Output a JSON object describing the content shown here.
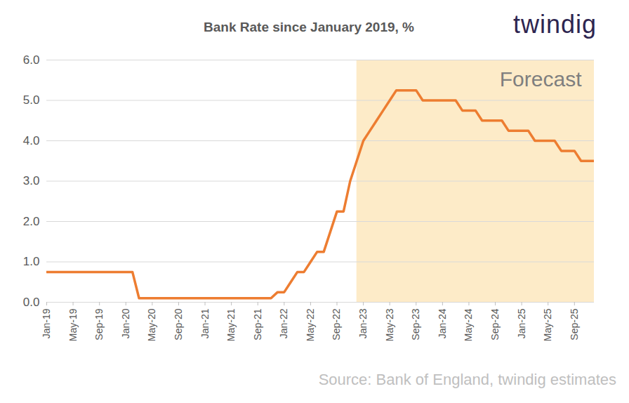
{
  "chart_data": {
    "type": "line",
    "title": "Bank Rate since January 2019, %",
    "brand": "twindig",
    "source": "Source: Bank of England, twindig estimates",
    "categories": [
      "Jan-19",
      null,
      null,
      null,
      "May-19",
      null,
      null,
      null,
      "Sep-19",
      null,
      null,
      null,
      "Jan-20",
      null,
      null,
      null,
      "May-20",
      null,
      null,
      null,
      "Sep-20",
      null,
      null,
      null,
      "Jan-21",
      null,
      null,
      null,
      "May-21",
      null,
      null,
      null,
      "Sep-21",
      null,
      null,
      null,
      "Jan-22",
      null,
      null,
      null,
      "May-22",
      null,
      null,
      null,
      "Sep-22",
      null,
      null,
      null,
      "Jan-23",
      null,
      null,
      null,
      "May-23",
      null,
      null,
      null,
      "Sep-23",
      null,
      null,
      null,
      "Jan-24",
      null,
      null,
      null,
      "May-24",
      null,
      null,
      null,
      "Sep-24",
      null,
      null,
      null,
      "Jan-25",
      null,
      null,
      null,
      "May-25",
      null,
      null,
      null,
      "Sep-25",
      null,
      null,
      null
    ],
    "values": [
      0.75,
      0.75,
      0.75,
      0.75,
      0.75,
      0.75,
      0.75,
      0.75,
      0.75,
      0.75,
      0.75,
      0.75,
      0.75,
      0.75,
      0.1,
      0.1,
      0.1,
      0.1,
      0.1,
      0.1,
      0.1,
      0.1,
      0.1,
      0.1,
      0.1,
      0.1,
      0.1,
      0.1,
      0.1,
      0.1,
      0.1,
      0.1,
      0.1,
      0.1,
      0.1,
      0.25,
      0.25,
      0.5,
      0.75,
      0.75,
      1.0,
      1.25,
      1.25,
      1.75,
      2.25,
      2.25,
      3.0,
      3.5,
      4.0,
      4.25,
      4.5,
      4.75,
      5.0,
      5.25,
      5.25,
      5.25,
      5.25,
      5.0,
      5.0,
      5.0,
      5.0,
      5.0,
      5.0,
      4.75,
      4.75,
      4.75,
      4.5,
      4.5,
      4.5,
      4.5,
      4.25,
      4.25,
      4.25,
      4.25,
      4.0,
      4.0,
      4.0,
      4.0,
      3.75,
      3.75,
      3.75,
      3.5,
      3.5,
      3.5
    ],
    "color": "#ED7D31",
    "ylim": [
      0,
      6
    ],
    "yticks": [
      {
        "value": 0,
        "label": "0.0"
      },
      {
        "value": 1,
        "label": "1.0"
      },
      {
        "value": 2,
        "label": "2.0"
      },
      {
        "value": 3,
        "label": "3.0"
      },
      {
        "value": 4,
        "label": "4.0"
      },
      {
        "value": 5,
        "label": "5.0"
      },
      {
        "value": 6,
        "label": "6.0"
      }
    ],
    "grid": true,
    "shaded_region": {
      "label": "Forecast",
      "from": 47,
      "to": 83
    }
  }
}
